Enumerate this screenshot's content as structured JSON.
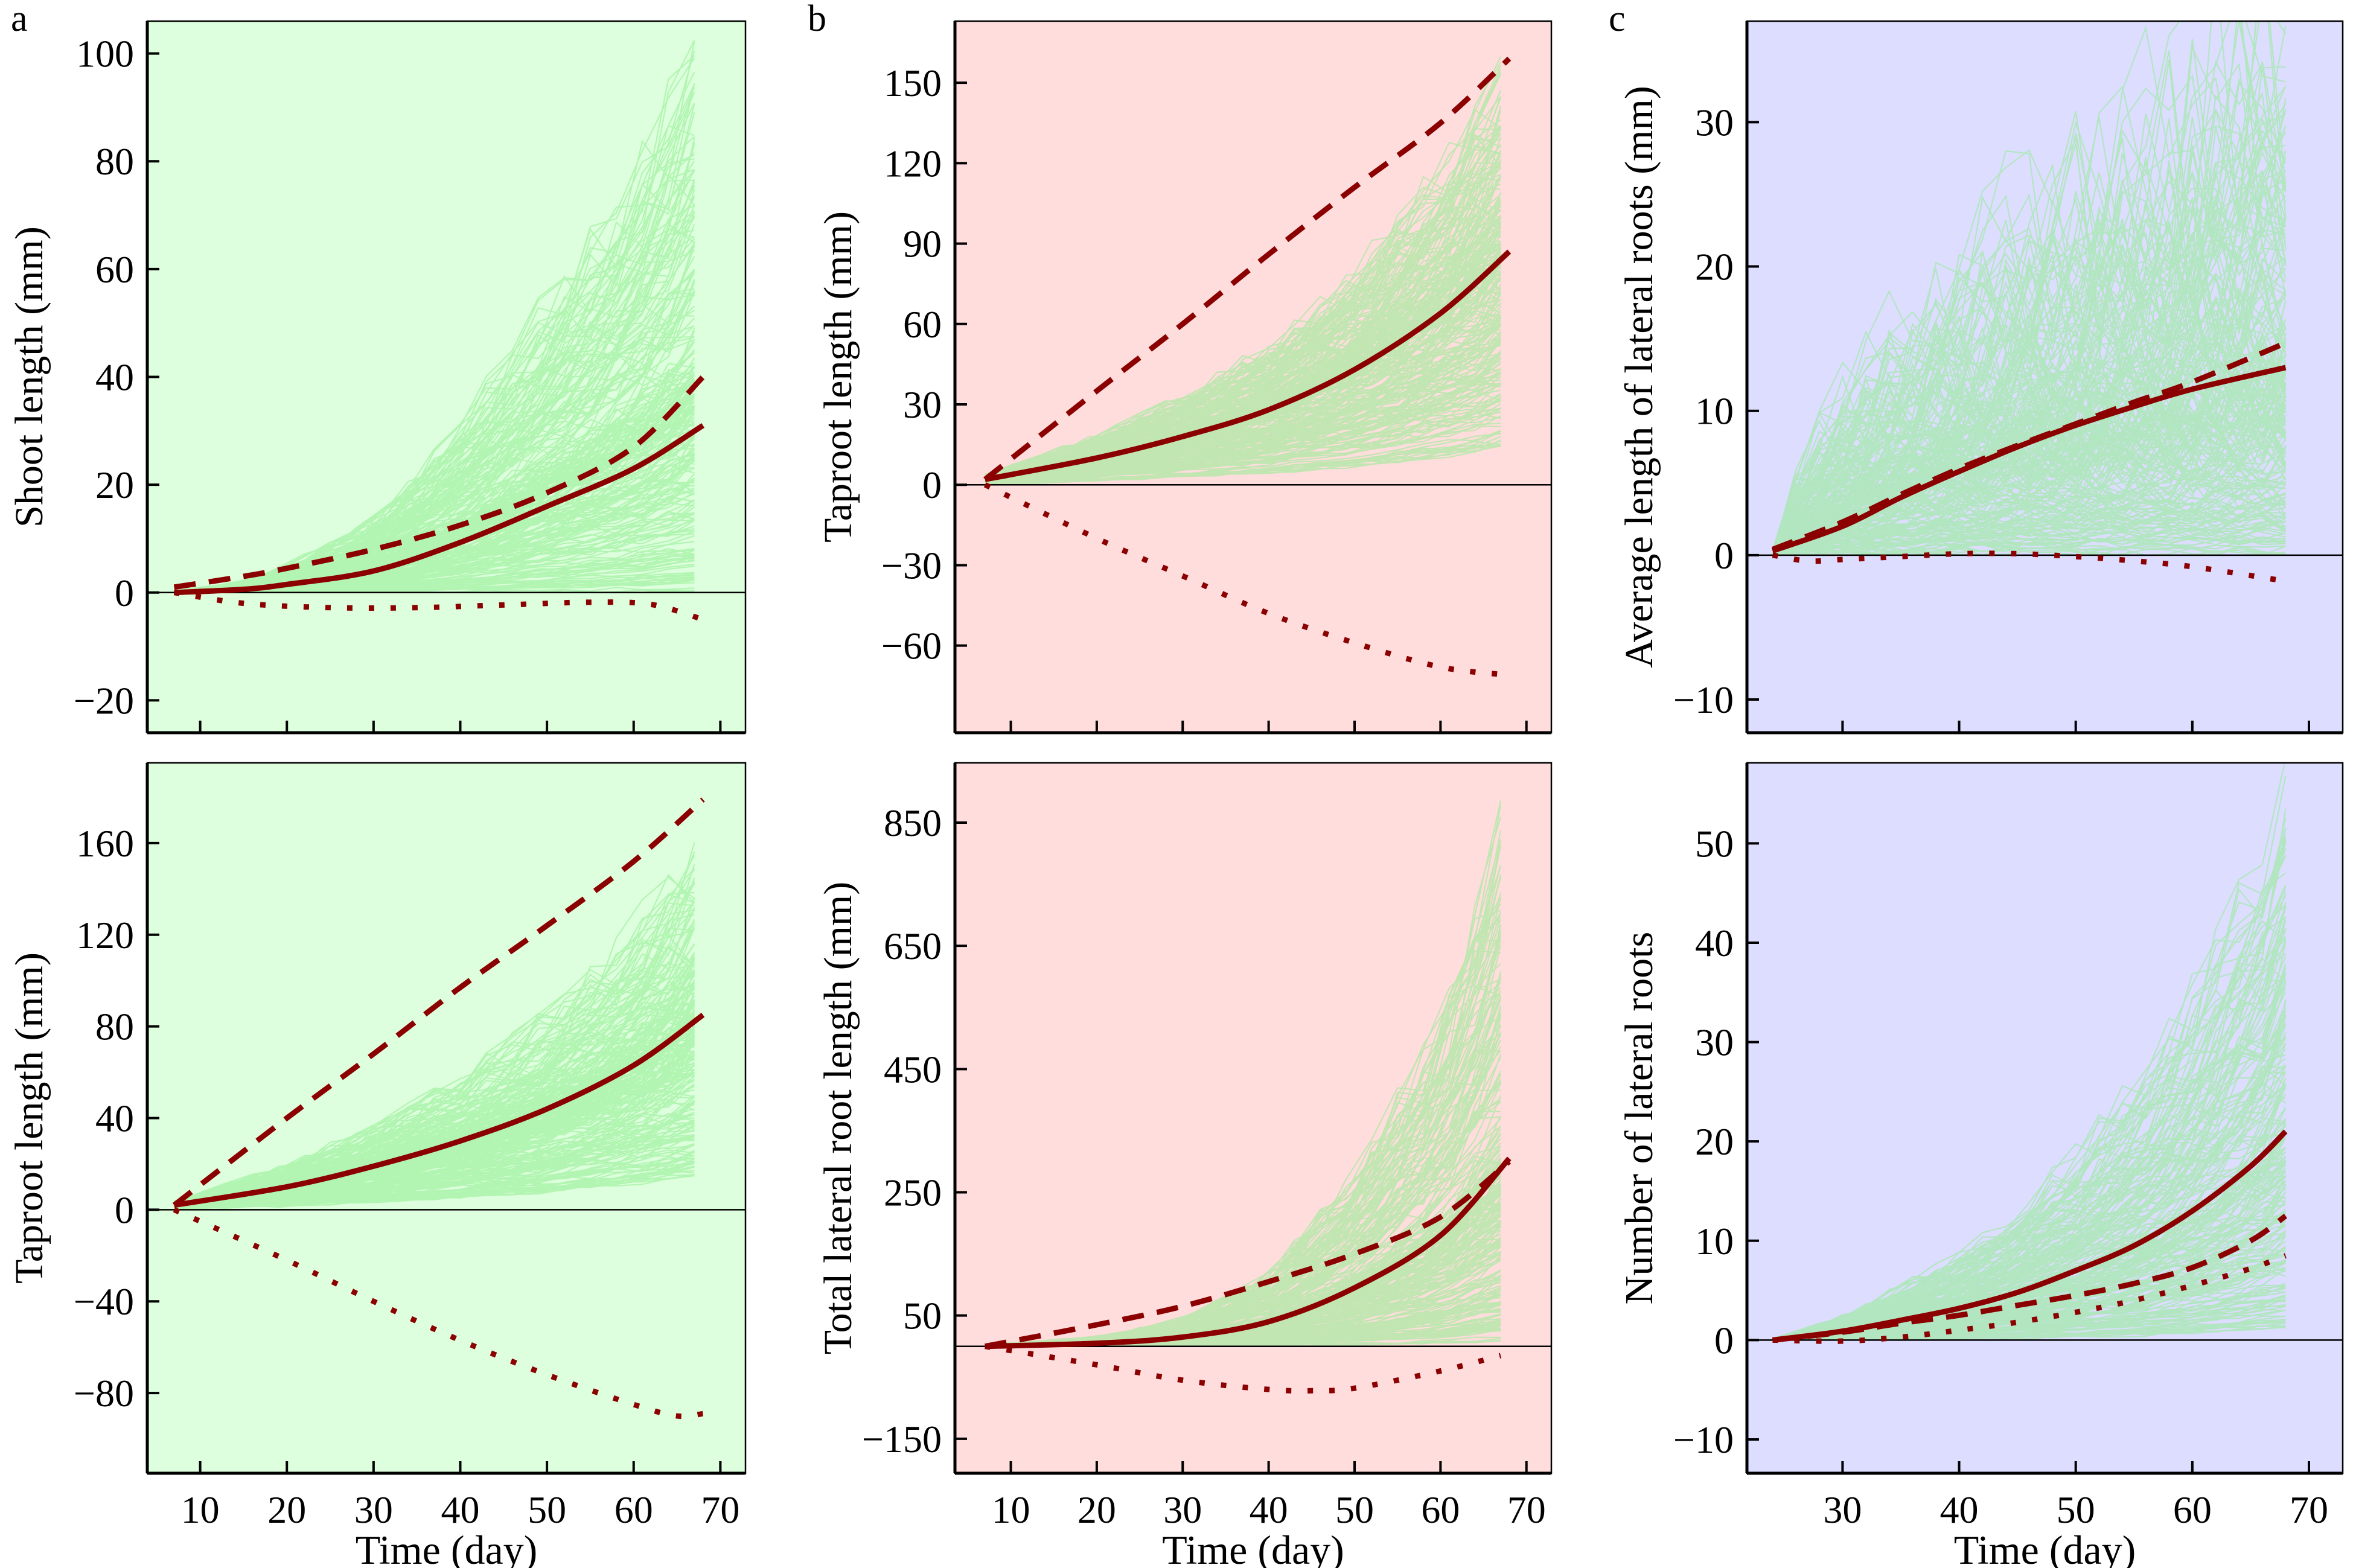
{
  "figure": {
    "panel_letters": [
      "a",
      "b",
      "c"
    ],
    "colors": {
      "traj_line": "#90ee90",
      "fit_line": "#8b0000",
      "axis": "#000000",
      "bg_a": "#ddffdd",
      "bg_b": "#ffdddd",
      "bg_c": "#ddddff"
    },
    "legend_note": "Light green: individual plant trajectories; solid dark-red: mean trajectory; dashed and dotted dark-red: additional fitted component curves"
  },
  "chart_data": [
    {
      "id": "a-top",
      "column": "a",
      "row": "top",
      "background": "bg_a",
      "type": "line",
      "title": "",
      "xlabel": "",
      "ylabel": "Shoot length (mm)",
      "xlim": [
        3.9,
        72.9
      ],
      "ylim": [
        -26,
        106
      ],
      "xticks": [
        10,
        20,
        30,
        40,
        50,
        60,
        70
      ],
      "xticklabels_shown": false,
      "yticks": [
        -20,
        0,
        20,
        40,
        60,
        80,
        100
      ],
      "yticklabels": [
        "−20",
        "0",
        "20",
        "40",
        "60",
        "80",
        "100"
      ],
      "zero_line": true,
      "grid": false,
      "trajectories": {
        "x_start": 7,
        "x_end": 68,
        "count": 260,
        "end_min": 0,
        "end_max": 100,
        "end_median": 38,
        "growth_shape": "convex"
      },
      "series": [
        {
          "name": "mean",
          "style": "solid",
          "x": [
            7,
            15,
            20,
            30,
            40,
            50,
            60,
            68
          ],
          "y": [
            0,
            0.6,
            1.5,
            4,
            9.3,
            16,
            23,
            31
          ]
        },
        {
          "name": "dashed",
          "style": "dashed",
          "x": [
            7,
            15,
            20,
            30,
            40,
            50,
            60,
            68
          ],
          "y": [
            1,
            3,
            4.5,
            8,
            12.5,
            18.5,
            27,
            40
          ]
        },
        {
          "name": "dotted",
          "style": "dotted",
          "x": [
            7,
            15,
            25,
            35,
            45,
            55,
            62,
            68
          ],
          "y": [
            0,
            -2,
            -2.8,
            -2.8,
            -2.3,
            -1.8,
            -2.2,
            -5
          ]
        }
      ]
    },
    {
      "id": "a-bottom",
      "column": "a",
      "row": "bottom",
      "background": "bg_a",
      "type": "line",
      "title": "",
      "xlabel": "Time (day)",
      "ylabel": "Taproot length (mm)",
      "xlim": [
        3.9,
        72.9
      ],
      "ylim": [
        -115,
        195
      ],
      "xticks": [
        10,
        20,
        30,
        40,
        50,
        60,
        70
      ],
      "xticklabels_shown": true,
      "xticklabels": [
        "10",
        "20",
        "30",
        "40",
        "50",
        "60",
        "70"
      ],
      "yticks": [
        -80,
        -40,
        0,
        40,
        80,
        120,
        160
      ],
      "yticklabels": [
        "−80",
        "−40",
        "0",
        "40",
        "80",
        "120",
        "160"
      ],
      "zero_line": true,
      "grid": false,
      "trajectories": {
        "x_start": 7,
        "x_end": 68,
        "count": 260,
        "end_min": 13,
        "end_max": 157,
        "end_median": 85,
        "growth_shape": "mild-convex"
      },
      "series": [
        {
          "name": "mean",
          "style": "solid",
          "x": [
            7,
            20,
            30,
            40,
            50,
            60,
            68
          ],
          "y": [
            2,
            10,
            19,
            30,
            44,
            63,
            85
          ]
        },
        {
          "name": "dashed",
          "style": "dashed",
          "x": [
            7,
            20,
            30,
            40,
            50,
            60,
            68
          ],
          "y": [
            2,
            40,
            68,
            97,
            124,
            152,
            179
          ]
        },
        {
          "name": "dotted",
          "style": "dotted",
          "x": [
            7,
            20,
            30,
            40,
            50,
            60,
            65,
            68
          ],
          "y": [
            0,
            -22,
            -40,
            -57,
            -72,
            -85,
            -90,
            -89
          ]
        }
      ]
    },
    {
      "id": "b-top",
      "column": "b",
      "row": "top",
      "background": "bg_b",
      "type": "line",
      "title": "",
      "xlabel": "",
      "ylabel": "Taproot length (mm)",
      "xlim": [
        3.5,
        72.9
      ],
      "ylim": [
        -92.5,
        173
      ],
      "xticks": [
        10,
        20,
        30,
        40,
        50,
        60,
        70
      ],
      "xticklabels_shown": false,
      "yticks": [
        -60,
        -30,
        0,
        30,
        60,
        90,
        120,
        150
      ],
      "yticklabels": [
        "−60",
        "−30",
        "0",
        "30",
        "60",
        "90",
        "120",
        "150"
      ],
      "zero_line": true,
      "grid": false,
      "trajectories": {
        "x_start": 7,
        "x_end": 68,
        "count": 260,
        "end_min": 13,
        "end_max": 152,
        "end_median": 88,
        "growth_shape": "mild-convex"
      },
      "series": [
        {
          "name": "mean",
          "style": "solid",
          "x": [
            7,
            20,
            30,
            40,
            50,
            60,
            68
          ],
          "y": [
            2,
            10,
            18,
            28,
            43,
            64,
            87
          ]
        },
        {
          "name": "dashed",
          "style": "dashed",
          "x": [
            7,
            20,
            30,
            40,
            50,
            60,
            68
          ],
          "y": [
            2,
            35,
            60,
            86,
            111,
            135,
            159
          ]
        },
        {
          "name": "dotted",
          "style": "dotted",
          "x": [
            7,
            20,
            30,
            40,
            50,
            60,
            68
          ],
          "y": [
            0,
            -20,
            -34,
            -48,
            -59,
            -68,
            -71
          ]
        }
      ]
    },
    {
      "id": "b-bottom",
      "column": "b",
      "row": "bottom",
      "background": "bg_b",
      "type": "line",
      "title": "",
      "xlabel": "Time (day)",
      "ylabel": "Total lateral root length (mm)",
      "xlim": [
        3.5,
        72.9
      ],
      "ylim": [
        -206,
        947
      ],
      "xticks": [
        10,
        20,
        30,
        40,
        50,
        60,
        70
      ],
      "xticklabels_shown": true,
      "xticklabels": [
        "10",
        "20",
        "30",
        "40",
        "50",
        "60",
        "70"
      ],
      "yticks": [
        -150,
        50,
        250,
        450,
        650,
        850
      ],
      "yticklabels": [
        "−150",
        "50",
        "250",
        "450",
        "650",
        "850"
      ],
      "zero_line": true,
      "grid": false,
      "trajectories": {
        "x_start": 7,
        "x_end": 68,
        "count": 260,
        "end_min": 5,
        "end_max": 870,
        "end_median": 280,
        "growth_shape": "strong-convex"
      },
      "series": [
        {
          "name": "mean",
          "style": "solid",
          "x": [
            7,
            20,
            30,
            40,
            50,
            60,
            68
          ],
          "y": [
            0,
            5,
            15,
            40,
            95,
            180,
            305
          ]
        },
        {
          "name": "dashed",
          "style": "dashed",
          "x": [
            7,
            20,
            30,
            40,
            50,
            60,
            68
          ],
          "y": [
            0,
            35,
            65,
            105,
            150,
            210,
            300
          ]
        },
        {
          "name": "dotted",
          "style": "dotted",
          "x": [
            7,
            20,
            30,
            40,
            45,
            50,
            60,
            67
          ],
          "y": [
            0,
            -30,
            -55,
            -70,
            -72,
            -68,
            -40,
            -15
          ]
        }
      ]
    },
    {
      "id": "c-top",
      "column": "c",
      "row": "top",
      "background": "bg_c",
      "type": "line",
      "title": "",
      "xlabel": "",
      "ylabel": "Average length of lateral roots (mm)",
      "xlim": [
        21.8,
        72.9
      ],
      "ylim": [
        -12.3,
        37
      ],
      "xticks": [
        30,
        40,
        50,
        60,
        70
      ],
      "xticklabels_shown": false,
      "yticks": [
        -10,
        0,
        10,
        20,
        30
      ],
      "yticklabels": [
        "−10",
        "0",
        "10",
        "20",
        "30"
      ],
      "zero_line": true,
      "grid": false,
      "trajectories": {
        "x_start": 24,
        "x_end": 68,
        "count": 220,
        "end_min": 0,
        "end_max": 34,
        "end_median": 12,
        "growth_shape": "concave-noisy"
      },
      "series": [
        {
          "name": "mean",
          "style": "solid",
          "x": [
            24,
            30,
            35,
            40,
            45,
            50,
            55,
            60,
            68
          ],
          "y": [
            0.3,
            2,
            4,
            5.8,
            7.5,
            9,
            10.3,
            11.5,
            13
          ]
        },
        {
          "name": "dashed",
          "style": "dashed",
          "x": [
            24,
            30,
            35,
            40,
            45,
            50,
            55,
            60,
            68
          ],
          "y": [
            0.4,
            2.3,
            4.2,
            6,
            7.6,
            9.1,
            10.6,
            12,
            14.7
          ]
        },
        {
          "name": "dotted",
          "style": "dotted",
          "x": [
            24,
            27,
            30,
            35,
            40,
            45,
            50,
            55,
            60,
            68
          ],
          "y": [
            0,
            -0.4,
            -0.3,
            -0.1,
            0.1,
            0.1,
            -0.1,
            -0.4,
            -0.8,
            -1.8
          ]
        }
      ]
    },
    {
      "id": "c-bottom",
      "column": "c",
      "row": "bottom",
      "background": "bg_c",
      "type": "line",
      "title": "",
      "xlabel": "Time (day)",
      "ylabel": "Number of lateral roots",
      "xlim": [
        21.8,
        72.9
      ],
      "ylim": [
        -13.4,
        58.1
      ],
      "xticks": [
        30,
        40,
        50,
        60,
        70
      ],
      "xticklabels_shown": true,
      "xticklabels": [
        "30",
        "40",
        "50",
        "60",
        "70"
      ],
      "yticks": [
        -10,
        0,
        10,
        20,
        30,
        40,
        50
      ],
      "yticklabels": [
        "−10",
        "0",
        "10",
        "20",
        "30",
        "40",
        "50"
      ],
      "zero_line": true,
      "grid": false,
      "trajectories": {
        "x_start": 24,
        "x_end": 68,
        "count": 220,
        "end_min": 0,
        "end_max": 54,
        "end_median": 20,
        "growth_shape": "convex-step"
      },
      "series": [
        {
          "name": "mean",
          "style": "solid",
          "x": [
            24,
            30,
            35,
            40,
            45,
            50,
            55,
            60,
            65,
            68
          ],
          "y": [
            0,
            0.9,
            2,
            3.2,
            4.8,
            7,
            9.5,
            13,
            17.5,
            21
          ]
        },
        {
          "name": "dashed",
          "style": "dashed",
          "x": [
            24,
            30,
            35,
            40,
            45,
            50,
            55,
            60,
            65,
            68
          ],
          "y": [
            0,
            0.8,
            1.7,
            2.5,
            3.5,
            4.5,
            5.7,
            7.3,
            10,
            12.5
          ]
        },
        {
          "name": "dotted",
          "style": "dotted",
          "x": [
            24,
            30,
            35,
            40,
            45,
            50,
            55,
            60,
            65,
            68
          ],
          "y": [
            0,
            -0.1,
            0.3,
            1,
            1.8,
            2.8,
            4,
            5.5,
            7.2,
            8.5
          ]
        }
      ]
    }
  ]
}
